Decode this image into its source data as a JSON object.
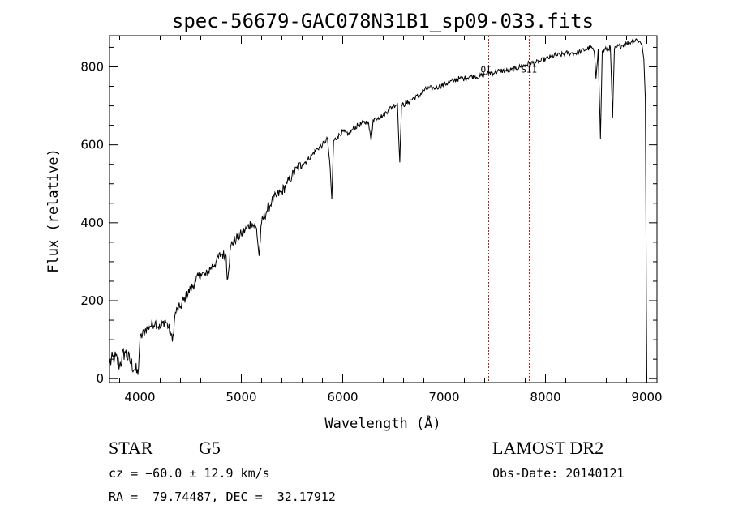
{
  "chart_data": {
    "type": "line",
    "title": "spec-56679-GAC078N31B1_sp09-033.fits",
    "xlabel": "Wavelength (Å)",
    "ylabel": "Flux (relative)",
    "xlim": [
      3700,
      9100
    ],
    "ylim": [
      -10,
      880
    ],
    "x_ticks": [
      4000,
      5000,
      6000,
      7000,
      8000,
      9000
    ],
    "y_ticks": [
      0,
      200,
      400,
      600,
      800
    ],
    "series": [
      {
        "name": "flux",
        "x": [
          3700,
          3750,
          3800,
          3850,
          3900,
          3950,
          3980,
          4000,
          4050,
          4100,
          4150,
          4200,
          4250,
          4300,
          4320,
          4350,
          4400,
          4450,
          4500,
          4550,
          4600,
          4650,
          4700,
          4750,
          4800,
          4850,
          4861,
          4900,
          4950,
          5000,
          5050,
          5100,
          5150,
          5175,
          5200,
          5250,
          5300,
          5350,
          5400,
          5450,
          5500,
          5550,
          5600,
          5650,
          5700,
          5750,
          5800,
          5850,
          5870,
          5893,
          5910,
          5950,
          6000,
          6050,
          6100,
          6150,
          6200,
          6250,
          6280,
          6300,
          6350,
          6400,
          6450,
          6500,
          6540,
          6563,
          6580,
          6650,
          6700,
          6750,
          6800,
          6850,
          6900,
          6950,
          7000,
          7050,
          7100,
          7150,
          7200,
          7250,
          7300,
          7350,
          7400,
          7450,
          7500,
          7550,
          7600,
          7650,
          7700,
          7750,
          7800,
          7850,
          7900,
          7950,
          8000,
          8050,
          8100,
          8150,
          8200,
          8250,
          8300,
          8350,
          8400,
          8450,
          8480,
          8498,
          8520,
          8542,
          8560,
          8600,
          8640,
          8662,
          8680,
          8700,
          8750,
          8800,
          8850,
          8900,
          8950,
          8970,
          8985,
          8995,
          9000,
          9005
        ],
        "y": [
          40,
          55,
          35,
          70,
          45,
          25,
          10,
          100,
          125,
          135,
          145,
          130,
          150,
          120,
          95,
          170,
          185,
          210,
          230,
          250,
          270,
          265,
          285,
          300,
          320,
          315,
          255,
          345,
          360,
          370,
          385,
          400,
          385,
          315,
          400,
          430,
          455,
          470,
          480,
          500,
          520,
          540,
          550,
          560,
          575,
          590,
          600,
          615,
          560,
          460,
          610,
          620,
          635,
          625,
          640,
          650,
          655,
          660,
          610,
          665,
          670,
          675,
          690,
          700,
          705,
          555,
          700,
          710,
          720,
          725,
          740,
          745,
          745,
          750,
          755,
          760,
          765,
          770,
          770,
          775,
          775,
          775,
          780,
          785,
          785,
          790,
          790,
          790,
          795,
          800,
          805,
          810,
          810,
          815,
          820,
          825,
          830,
          830,
          835,
          835,
          835,
          840,
          845,
          850,
          840,
          770,
          845,
          615,
          840,
          845,
          850,
          670,
          845,
          850,
          855,
          860,
          865,
          870,
          860,
          820,
          720,
          180,
          0,
          0
        ]
      }
    ],
    "vlines": [
      {
        "x": 7440,
        "label": "OI"
      },
      {
        "x": 7840,
        "label": "SII"
      }
    ]
  },
  "info": {
    "class": "STAR",
    "subclass": "G5",
    "survey": "LAMOST DR2",
    "cz": "cz = −60.0 ± 12.9 km/s",
    "obs_date": "Obs-Date: 20140121",
    "coords": "RA =  79.74487, DEC =  32.17912"
  },
  "colors": {
    "line": "#000000",
    "marker_lines": "#b22222"
  }
}
